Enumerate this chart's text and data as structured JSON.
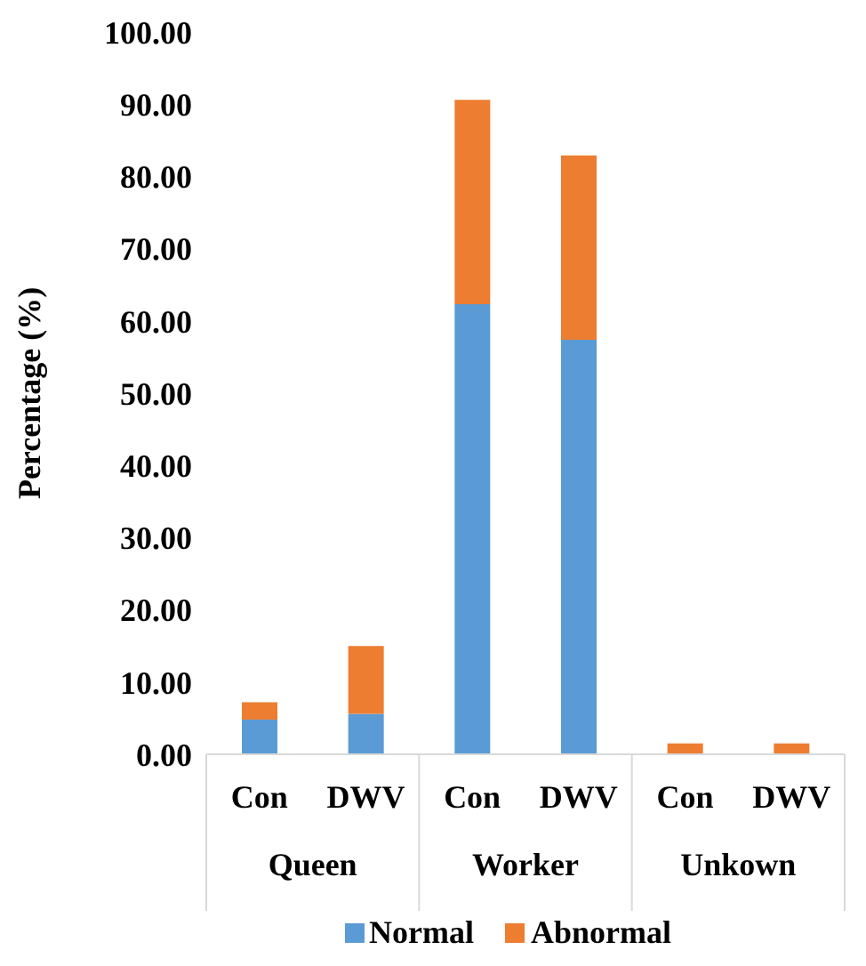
{
  "chart_data": {
    "type": "bar",
    "stacked": true,
    "ylabel": "Percentage (%)",
    "categories": [
      "Con",
      "DWV",
      "Con",
      "DWV",
      "Con",
      "DWV"
    ],
    "annotations": [
      "Queen",
      "Worker",
      "Unkown"
    ],
    "series": [
      {
        "name": "Normal",
        "color": "#5b9bd5",
        "values": [
          4.8,
          5.6,
          62.3,
          57.4,
          0,
          0
        ]
      },
      {
        "name": "Abnormal",
        "color": "#ed7d31",
        "values": [
          2.4,
          9.4,
          28.3,
          25.5,
          1.5,
          1.5
        ]
      }
    ],
    "ylim": [
      0,
      100
    ],
    "yticks": [
      {
        "value": 0,
        "label": "0.00"
      },
      {
        "value": 10,
        "label": "10.00"
      },
      {
        "value": 20,
        "label": "20.00"
      },
      {
        "value": 30,
        "label": "30.00"
      },
      {
        "value": 40,
        "label": "40.00"
      },
      {
        "value": 50,
        "label": "50.00"
      },
      {
        "value": 60,
        "label": "60.00"
      },
      {
        "value": 70,
        "label": "70.00"
      },
      {
        "value": 80,
        "label": "80.00"
      },
      {
        "value": 90,
        "label": "90.00"
      },
      {
        "value": 100,
        "label": "100.00"
      }
    ],
    "grid": false,
    "legend": "bottom"
  }
}
